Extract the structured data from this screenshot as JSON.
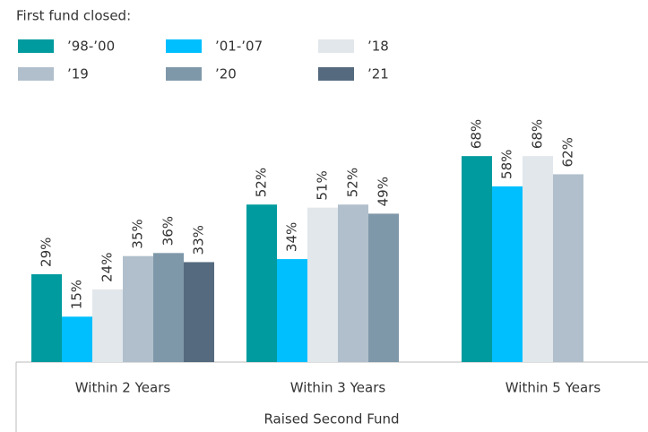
{
  "chart_data": {
    "type": "bar",
    "legend_title": "First fund closed:",
    "x_label": "Raised Second Fund",
    "categories": [
      "Within 2 Years",
      "Within 3 Years",
      "Within 5 Years"
    ],
    "ylim": [
      0,
      100
    ],
    "series": [
      {
        "name": "’98-’00",
        "color": "#009b9e",
        "values": [
          29,
          52,
          68
        ],
        "value_labels": [
          "29%",
          "52%",
          "68%"
        ]
      },
      {
        "name": "’01-’07",
        "color": "#00bfff",
        "values": [
          15,
          34,
          58
        ],
        "value_labels": [
          "15%",
          "34%",
          "58%"
        ]
      },
      {
        "name": "’18",
        "color": "#e1e7eb",
        "values": [
          24,
          51,
          68
        ],
        "value_labels": [
          "24%",
          "51%",
          "68%"
        ]
      },
      {
        "name": "’19",
        "color": "#b1bfcc",
        "values": [
          35,
          52,
          62
        ],
        "value_labels": [
          "35%",
          "52%",
          "62%"
        ]
      },
      {
        "name": "’20",
        "color": "#7f98a9",
        "values": [
          36,
          49,
          null
        ],
        "value_labels": [
          "36%",
          "49%",
          null
        ]
      },
      {
        "name": "’21",
        "color": "#556a7e",
        "values": [
          33,
          null,
          null
        ],
        "value_labels": [
          "33%",
          null,
          null
        ]
      }
    ]
  }
}
